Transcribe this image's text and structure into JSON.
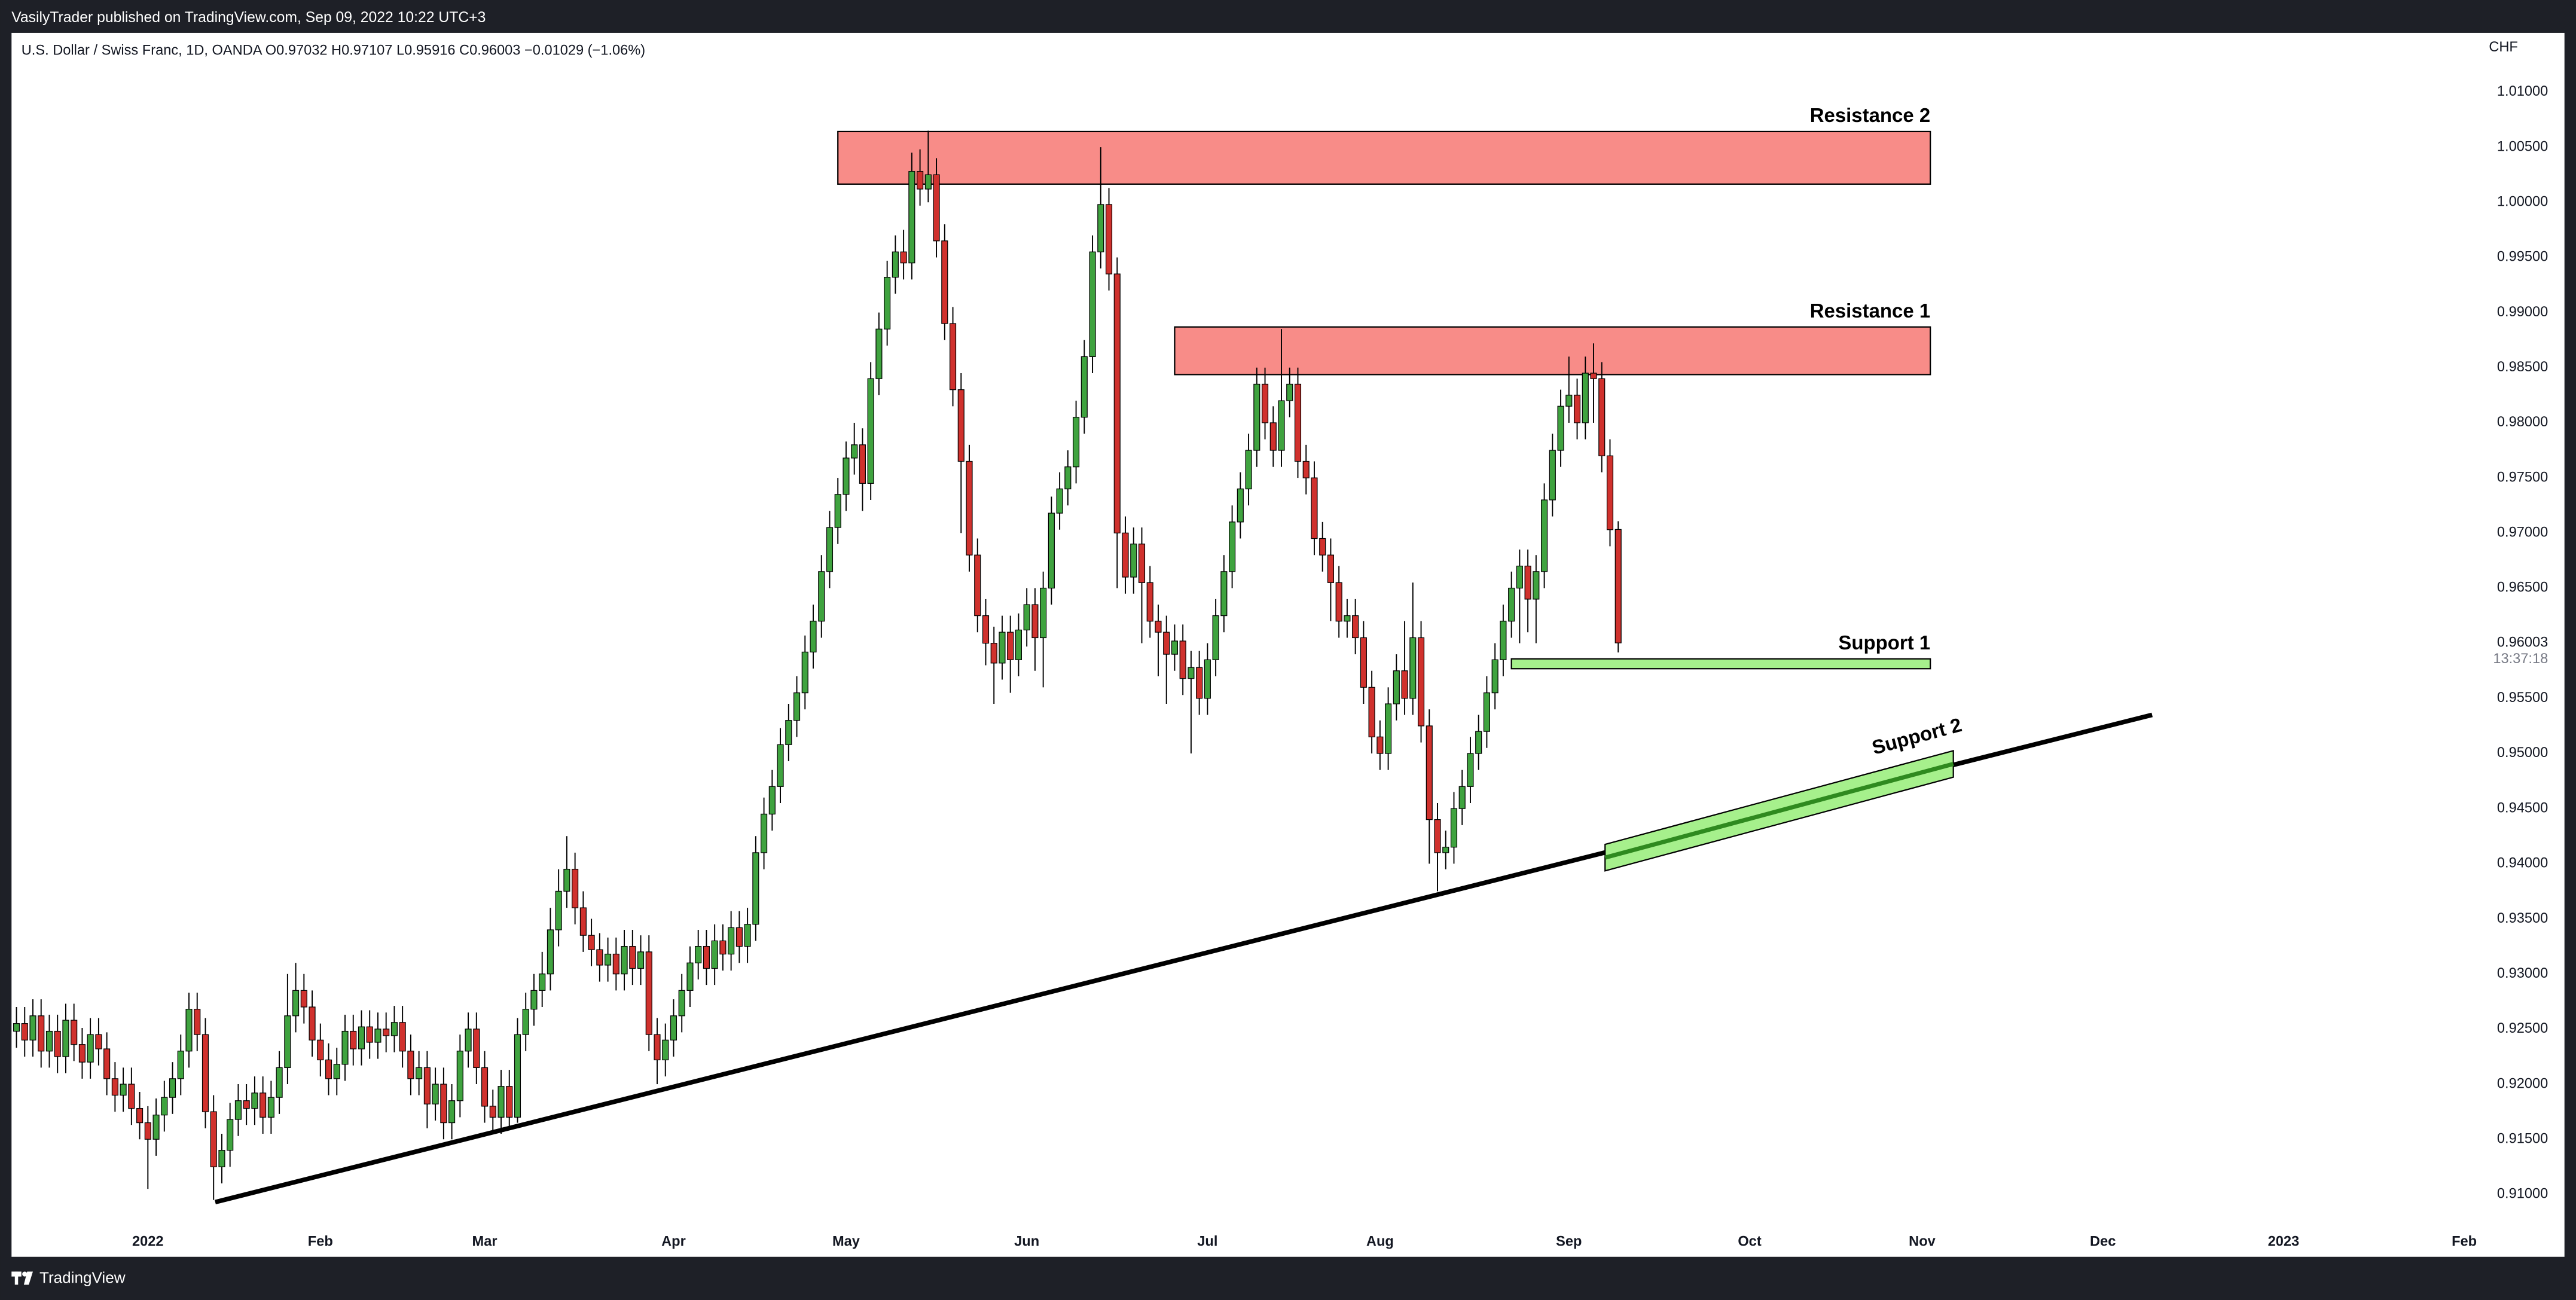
{
  "header": "VasilyTrader published on TradingView.com, Sep 09, 2022 10:22 UTC+3",
  "footer_brand": "TradingView",
  "chart_data": {
    "type": "candlestick",
    "title": "U.S. Dollar / Swiss Franc, 1D, OANDA  O0.97032  H0.97107  L0.95916  C0.96003  −0.01029 (−1.06%)",
    "currency": "CHF",
    "countdown": "13:37:18",
    "up_color": "#3fa33f",
    "down_color": "#d0312d",
    "grid": false,
    "xlim": [
      -0.4,
      299.6
    ],
    "ylim": [
      0.90732,
      1.01537
    ],
    "xticks": [
      {
        "value": 16,
        "label": "2022"
      },
      {
        "value": 37,
        "label": "Feb"
      },
      {
        "value": 57,
        "label": "Mar"
      },
      {
        "value": 80,
        "label": "Apr"
      },
      {
        "value": 101,
        "label": "May"
      },
      {
        "value": 123,
        "label": "Jun"
      },
      {
        "value": 145,
        "label": "Jul"
      },
      {
        "value": 166,
        "label": "Aug"
      },
      {
        "value": 189,
        "label": "Sep"
      },
      {
        "value": 211,
        "label": "Oct"
      },
      {
        "value": 232,
        "label": "Nov"
      },
      {
        "value": 254,
        "label": "Dec"
      },
      {
        "value": 276,
        "label": "2023"
      },
      {
        "value": 298,
        "label": "Feb"
      }
    ],
    "yticks": [
      {
        "value": 0.91,
        "label": "0.91000"
      },
      {
        "value": 0.915,
        "label": "0.91500"
      },
      {
        "value": 0.92,
        "label": "0.92000"
      },
      {
        "value": 0.925,
        "label": "0.92500"
      },
      {
        "value": 0.93,
        "label": "0.93000"
      },
      {
        "value": 0.935,
        "label": "0.93500"
      },
      {
        "value": 0.94,
        "label": "0.94000"
      },
      {
        "value": 0.945,
        "label": "0.94500"
      },
      {
        "value": 0.95,
        "label": "0.95000"
      },
      {
        "value": 0.955,
        "label": "0.95500"
      },
      {
        "value": 0.965,
        "label": "0.96500"
      },
      {
        "value": 0.97,
        "label": "0.97000"
      },
      {
        "value": 0.975,
        "label": "0.97500"
      },
      {
        "value": 0.98,
        "label": "0.98000"
      },
      {
        "value": 0.985,
        "label": "0.98500"
      },
      {
        "value": 0.99,
        "label": "0.99000"
      },
      {
        "value": 0.995,
        "label": "0.99500"
      },
      {
        "value": 1.0,
        "label": "1.00000"
      },
      {
        "value": 1.005,
        "label": "1.00500"
      },
      {
        "value": 1.01,
        "label": "1.01000"
      }
    ],
    "open": [
      0.9248,
      0.9255,
      0.924,
      0.9262,
      0.923,
      0.9248,
      0.9225,
      0.9258,
      0.9236,
      0.922,
      0.9245,
      0.9232,
      0.9205,
      0.919,
      0.92,
      0.9178,
      0.9165,
      0.915,
      0.9172,
      0.9188,
      0.9205,
      0.923,
      0.9268,
      0.9245,
      0.9175,
      0.9125,
      0.914,
      0.9168,
      0.9185,
      0.9178,
      0.9192,
      0.917,
      0.9188,
      0.9215,
      0.9262,
      0.9285,
      0.927,
      0.924,
      0.9222,
      0.9205,
      0.9218,
      0.9248,
      0.9232,
      0.9252,
      0.9238,
      0.925,
      0.9244,
      0.9256,
      0.923,
      0.9205,
      0.9215,
      0.9182,
      0.92,
      0.9165,
      0.9185,
      0.923,
      0.925,
      0.9215,
      0.918,
      0.917,
      0.9198,
      0.917,
      0.9245,
      0.9268,
      0.9285,
      0.93,
      0.934,
      0.9375,
      0.9395,
      0.936,
      0.9335,
      0.9322,
      0.9308,
      0.9318,
      0.93,
      0.9325,
      0.9305,
      0.932,
      0.9245,
      0.9222,
      0.924,
      0.9262,
      0.9285,
      0.931,
      0.9325,
      0.9305,
      0.933,
      0.9318,
      0.9342,
      0.9325,
      0.9345,
      0.941,
      0.9445,
      0.947,
      0.9508,
      0.953,
      0.9555,
      0.9592,
      0.962,
      0.9665,
      0.9705,
      0.9735,
      0.9768,
      0.978,
      0.9745,
      0.984,
      0.9885,
      0.9932,
      0.9955,
      0.9945,
      1.0028,
      1.0012,
      1.0025,
      0.9965,
      0.989,
      0.983,
      0.9765,
      0.968,
      0.9625,
      0.96,
      0.9582,
      0.961,
      0.9585,
      0.9612,
      0.9635,
      0.9605,
      0.965,
      0.9718,
      0.974,
      0.976,
      0.9805,
      0.986,
      0.9955,
      0.9998,
      0.9935,
      0.97,
      0.966,
      0.969,
      0.9655,
      0.962,
      0.961,
      0.959,
      0.9602,
      0.9568,
      0.9578,
      0.955,
      0.9585,
      0.9625,
      0.9665,
      0.971,
      0.974,
      0.9775,
      0.9835,
      0.98,
      0.9775,
      0.982,
      0.9835,
      0.9765,
      0.975,
      0.9695,
      0.968,
      0.9655,
      0.962,
      0.9625,
      0.9605,
      0.956,
      0.9515,
      0.95,
      0.9545,
      0.9575,
      0.955,
      0.9605,
      0.9525,
      0.944,
      0.941,
      0.9415,
      0.945,
      0.947,
      0.95,
      0.952,
      0.9555,
      0.9585,
      0.962,
      0.965,
      0.967,
      0.964,
      0.9665,
      0.973,
      0.9775,
      0.9815,
      0.9825,
      0.98,
      0.9845,
      0.984,
      0.977,
      0.97032
    ],
    "high": [
      0.927,
      0.927,
      0.9277,
      0.9277,
      0.9263,
      0.9263,
      0.9273,
      0.9273,
      0.9251,
      0.926,
      0.926,
      0.9247,
      0.922,
      0.9215,
      0.9215,
      0.9193,
      0.918,
      0.9187,
      0.9203,
      0.922,
      0.9245,
      0.9283,
      0.9283,
      0.926,
      0.919,
      0.9155,
      0.9183,
      0.92,
      0.92,
      0.9207,
      0.9207,
      0.9203,
      0.923,
      0.93,
      0.931,
      0.93,
      0.9285,
      0.9255,
      0.9237,
      0.9233,
      0.9263,
      0.9263,
      0.9267,
      0.9267,
      0.9265,
      0.9265,
      0.9271,
      0.9271,
      0.9245,
      0.923,
      0.923,
      0.9215,
      0.9215,
      0.92,
      0.9245,
      0.9265,
      0.9265,
      0.923,
      0.9195,
      0.9213,
      0.9213,
      0.926,
      0.9283,
      0.93,
      0.932,
      0.936,
      0.9395,
      0.9425,
      0.941,
      0.9375,
      0.935,
      0.9337,
      0.9333,
      0.9333,
      0.934,
      0.934,
      0.9335,
      0.9335,
      0.926,
      0.9255,
      0.9277,
      0.93,
      0.9325,
      0.934,
      0.934,
      0.9345,
      0.9345,
      0.9357,
      0.9357,
      0.936,
      0.9425,
      0.946,
      0.9485,
      0.9523,
      0.9545,
      0.957,
      0.9607,
      0.9635,
      0.968,
      0.972,
      0.975,
      0.9783,
      0.98,
      0.9795,
      0.9855,
      0.99,
      0.9947,
      0.997,
      0.9975,
      1.0045,
      1.0048,
      1.0065,
      1.004,
      0.998,
      0.9905,
      0.9845,
      0.978,
      0.9695,
      0.964,
      0.9615,
      0.9625,
      0.9625,
      0.9627,
      0.965,
      0.965,
      0.9665,
      0.9733,
      0.9755,
      0.9775,
      0.982,
      0.9875,
      0.997,
      1.005,
      1.0013,
      0.995,
      0.9715,
      0.9705,
      0.9705,
      0.967,
      0.9635,
      0.9625,
      0.9617,
      0.9617,
      0.9593,
      0.9593,
      0.96,
      0.964,
      0.968,
      0.9725,
      0.9755,
      0.979,
      0.985,
      0.985,
      0.9815,
      0.9885,
      0.985,
      0.985,
      0.978,
      0.9765,
      0.971,
      0.9695,
      0.967,
      0.964,
      0.964,
      0.962,
      0.9575,
      0.953,
      0.956,
      0.959,
      0.962,
      0.9655,
      0.962,
      0.954,
      0.9455,
      0.943,
      0.9465,
      0.9485,
      0.9515,
      0.9535,
      0.957,
      0.96,
      0.9635,
      0.9665,
      0.9685,
      0.9685,
      0.968,
      0.9745,
      0.979,
      0.983,
      0.986,
      0.984,
      0.986,
      0.9872,
      0.9855,
      0.9785,
      0.97107
    ],
    "low": [
      0.9233,
      0.9225,
      0.9225,
      0.9215,
      0.9215,
      0.921,
      0.921,
      0.9221,
      0.9205,
      0.9205,
      0.9217,
      0.919,
      0.9175,
      0.9175,
      0.9163,
      0.915,
      0.9105,
      0.9135,
      0.9157,
      0.9173,
      0.919,
      0.9215,
      0.923,
      0.916,
      0.9095,
      0.911,
      0.9125,
      0.9153,
      0.9163,
      0.9163,
      0.9155,
      0.9155,
      0.9173,
      0.92,
      0.9247,
      0.9255,
      0.9225,
      0.9207,
      0.919,
      0.919,
      0.9203,
      0.9217,
      0.9217,
      0.9223,
      0.9223,
      0.9229,
      0.9229,
      0.9215,
      0.919,
      0.919,
      0.916,
      0.9167,
      0.915,
      0.915,
      0.917,
      0.9215,
      0.92,
      0.9165,
      0.9155,
      0.9155,
      0.916,
      0.9165,
      0.923,
      0.9253,
      0.927,
      0.9285,
      0.9325,
      0.936,
      0.9345,
      0.932,
      0.9307,
      0.9293,
      0.9293,
      0.9285,
      0.9285,
      0.929,
      0.929,
      0.923,
      0.92,
      0.9207,
      0.9225,
      0.9247,
      0.927,
      0.9295,
      0.929,
      0.929,
      0.9303,
      0.9303,
      0.931,
      0.931,
      0.933,
      0.9395,
      0.943,
      0.9455,
      0.9493,
      0.9515,
      0.954,
      0.9577,
      0.9605,
      0.965,
      0.969,
      0.972,
      0.9753,
      0.972,
      0.973,
      0.9825,
      0.987,
      0.9917,
      0.993,
      0.993,
      0.9997,
      1.0,
      0.995,
      0.9875,
      0.9815,
      0.97,
      0.9665,
      0.961,
      0.958,
      0.9545,
      0.9567,
      0.9555,
      0.957,
      0.9597,
      0.9575,
      0.956,
      0.9635,
      0.9703,
      0.9725,
      0.9745,
      0.979,
      0.9845,
      0.994,
      0.992,
      0.965,
      0.9645,
      0.9645,
      0.96,
      0.9605,
      0.957,
      0.9545,
      0.9575,
      0.9553,
      0.95,
      0.9535,
      0.9535,
      0.957,
      0.961,
      0.965,
      0.9695,
      0.9725,
      0.976,
      0.9785,
      0.976,
      0.976,
      0.9805,
      0.975,
      0.9735,
      0.968,
      0.9665,
      0.962,
      0.9605,
      0.9605,
      0.959,
      0.9545,
      0.95,
      0.9485,
      0.9485,
      0.953,
      0.9535,
      0.9535,
      0.951,
      0.94,
      0.9375,
      0.9395,
      0.94,
      0.9435,
      0.9455,
      0.9485,
      0.9505,
      0.954,
      0.957,
      0.9605,
      0.96,
      0.961,
      0.96,
      0.965,
      0.9715,
      0.976,
      0.98,
      0.9785,
      0.9785,
      0.98,
      0.9755,
      0.9688,
      0.95916
    ],
    "close": [
      0.9255,
      0.924,
      0.9262,
      0.923,
      0.9248,
      0.9225,
      0.9258,
      0.9236,
      0.922,
      0.9245,
      0.9232,
      0.9205,
      0.919,
      0.92,
      0.9178,
      0.9165,
      0.915,
      0.9172,
      0.9188,
      0.9205,
      0.923,
      0.9268,
      0.9245,
      0.9175,
      0.9125,
      0.914,
      0.9168,
      0.9185,
      0.9178,
      0.9192,
      0.917,
      0.9188,
      0.9215,
      0.9262,
      0.9285,
      0.927,
      0.924,
      0.9222,
      0.9205,
      0.9218,
      0.9248,
      0.9232,
      0.9252,
      0.9238,
      0.925,
      0.9244,
      0.9256,
      0.923,
      0.9205,
      0.9215,
      0.9182,
      0.92,
      0.9165,
      0.9185,
      0.923,
      0.925,
      0.9215,
      0.918,
      0.917,
      0.9198,
      0.917,
      0.9245,
      0.9268,
      0.9285,
      0.93,
      0.934,
      0.9375,
      0.9395,
      0.936,
      0.9335,
      0.9322,
      0.9308,
      0.9318,
      0.93,
      0.9325,
      0.9305,
      0.932,
      0.9245,
      0.9222,
      0.924,
      0.9262,
      0.9285,
      0.931,
      0.9325,
      0.9305,
      0.933,
      0.9318,
      0.9342,
      0.9325,
      0.9345,
      0.941,
      0.9445,
      0.947,
      0.9508,
      0.953,
      0.9555,
      0.9592,
      0.962,
      0.9665,
      0.9705,
      0.9735,
      0.9768,
      0.978,
      0.9745,
      0.984,
      0.9885,
      0.9932,
      0.9955,
      0.9945,
      1.0028,
      1.0012,
      1.0025,
      0.9965,
      0.989,
      0.983,
      0.9765,
      0.968,
      0.9625,
      0.96,
      0.9582,
      0.961,
      0.9585,
      0.9612,
      0.9635,
      0.9605,
      0.965,
      0.9718,
      0.974,
      0.976,
      0.9805,
      0.986,
      0.9955,
      0.9998,
      0.9935,
      0.97,
      0.966,
      0.969,
      0.9655,
      0.962,
      0.961,
      0.959,
      0.9602,
      0.9568,
      0.9578,
      0.955,
      0.9585,
      0.9625,
      0.9665,
      0.971,
      0.974,
      0.9775,
      0.9835,
      0.98,
      0.9775,
      0.982,
      0.9835,
      0.9765,
      0.975,
      0.9695,
      0.968,
      0.9655,
      0.962,
      0.9625,
      0.9605,
      0.956,
      0.9515,
      0.95,
      0.9545,
      0.9575,
      0.955,
      0.9605,
      0.9525,
      0.944,
      0.941,
      0.9415,
      0.945,
      0.947,
      0.95,
      0.952,
      0.9555,
      0.9585,
      0.962,
      0.965,
      0.967,
      0.964,
      0.9665,
      0.973,
      0.9775,
      0.9815,
      0.9825,
      0.98,
      0.9845,
      0.984,
      0.977,
      0.9703,
      0.96003
    ],
    "zones": [
      {
        "label": "Resistance 2",
        "x": [
          100,
          233
        ],
        "y": [
          1.00165,
          1.00642
        ],
        "color": "#f88c88"
      },
      {
        "label": "Resistance 1",
        "x": [
          141,
          233
        ],
        "y": [
          0.98437,
          0.98869
        ],
        "color": "#f88c88"
      },
      {
        "label": "Support 1",
        "x": [
          182,
          233
        ],
        "y": [
          0.95769,
          0.95858
        ],
        "color": "#a6f08c"
      }
    ],
    "trendline": {
      "x": [
        24.2,
        260
      ],
      "y": [
        0.9093,
        0.9535
      ],
      "color": "#000000"
    },
    "channel": {
      "label": "Support 2",
      "x": [
        193.4,
        235.8
      ],
      "y": [
        0.94055,
        0.94905
      ],
      "width": 0.0024,
      "color": "#a6f08c",
      "line_color": "#2f8a1f"
    }
  }
}
